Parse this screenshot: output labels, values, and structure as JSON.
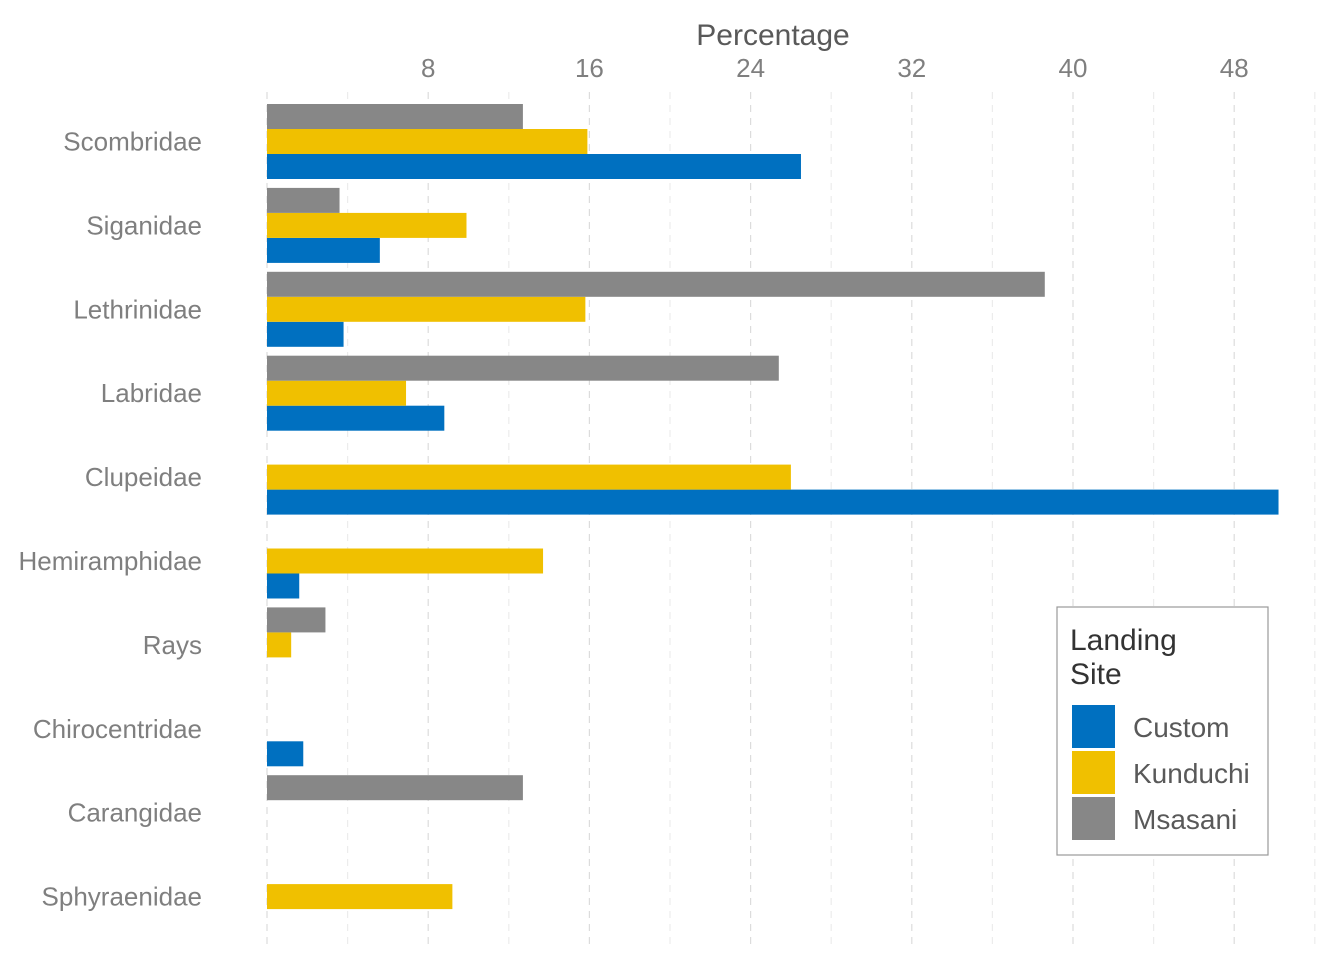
{
  "chart_data": {
    "type": "bar",
    "orientation": "horizontal",
    "xlabel": "Percentage",
    "ylabel": "",
    "xlim": [
      0,
      52
    ],
    "xticks": [
      8,
      16,
      24,
      32,
      40,
      48
    ],
    "grid": true,
    "categories": [
      "Scombridae",
      "Siganidae",
      "Lethrinidae",
      "Labridae",
      "Clupeidae",
      "Hemiramphidae",
      "Rays",
      "Chirocentridae",
      "Carangidae",
      "Sphyraenidae"
    ],
    "series": [
      {
        "name": "Custom",
        "color": "#0070c0",
        "values": [
          26.5,
          5.6,
          3.8,
          8.8,
          50.2,
          1.6,
          null,
          1.8,
          null,
          null
        ]
      },
      {
        "name": "Kunduchi",
        "color": "#f0c000",
        "values": [
          15.9,
          9.9,
          15.8,
          6.9,
          26.0,
          13.7,
          1.2,
          null,
          null,
          9.2
        ]
      },
      {
        "name": "Msasani",
        "color": "#878787",
        "values": [
          12.7,
          3.6,
          38.6,
          25.4,
          null,
          null,
          2.9,
          null,
          12.7,
          null
        ]
      }
    ],
    "legend": {
      "title": "Landing Site",
      "title_lines": [
        "Landing",
        "Site"
      ],
      "position": "bottom-right"
    }
  }
}
